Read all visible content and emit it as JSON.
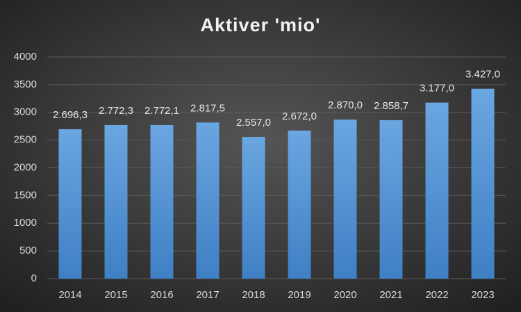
{
  "chart_data": {
    "type": "bar",
    "title": "Aktiver 'mio'",
    "categories": [
      "2014",
      "2015",
      "2016",
      "2017",
      "2018",
      "2019",
      "2020",
      "2021",
      "2022",
      "2023"
    ],
    "values": [
      2696.3,
      2772.3,
      2772.1,
      2817.5,
      2557.0,
      2672.0,
      2870.0,
      2858.7,
      3177.0,
      3427.0
    ],
    "value_labels": [
      "2.696,3",
      "2.772,3",
      "2.772,1",
      "2.817,5",
      "2.557,0",
      "2.672,0",
      "2.870,0",
      "2.858,7",
      "3.177,0",
      "3.427,0"
    ],
    "color": "#6aa6e0",
    "ylim": [
      0,
      4000
    ],
    "yticks": [
      0,
      500,
      1000,
      1500,
      2000,
      2500,
      3000,
      3500,
      4000
    ],
    "grid": true
  }
}
